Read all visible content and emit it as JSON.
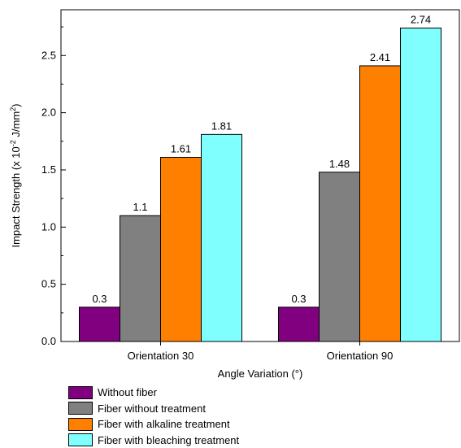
{
  "chart_data": {
    "type": "bar",
    "categories": [
      "Orientation 30",
      "Orientation 90"
    ],
    "series": [
      {
        "name": "Without fiber",
        "values": [
          0.3,
          0.3
        ],
        "color": "#800080"
      },
      {
        "name": "Fiber without treatment",
        "values": [
          1.1,
          1.48
        ],
        "color": "#808080"
      },
      {
        "name": "Fiber with alkaline treatment",
        "values": [
          1.61,
          2.41
        ],
        "color": "#FF8000"
      },
      {
        "name": "Fiber with bleaching treatment",
        "values": [
          1.81,
          2.74
        ],
        "color": "#80FFFF"
      }
    ],
    "data_labels": [
      [
        "0.3",
        "0.3"
      ],
      [
        "1.1",
        "1.48"
      ],
      [
        "1.61",
        "2.41"
      ],
      [
        "1.81",
        "2.74"
      ]
    ],
    "xlabel": "Angle Variation (°)",
    "ylabel": {
      "pre": "Impact Strength (x 10",
      "exp1": "-2",
      "mid": " J/mm",
      "exp2": "2",
      "post": ")"
    },
    "yticks": [
      0.0,
      0.5,
      1.0,
      1.5,
      2.0,
      2.5
    ],
    "ytick_labels": [
      "0.0",
      "0.5",
      "1.0",
      "1.5",
      "2.0",
      "2.5"
    ],
    "ylim": [
      0,
      2.9
    ],
    "legend_placement": "bottom-left, below chart"
  }
}
